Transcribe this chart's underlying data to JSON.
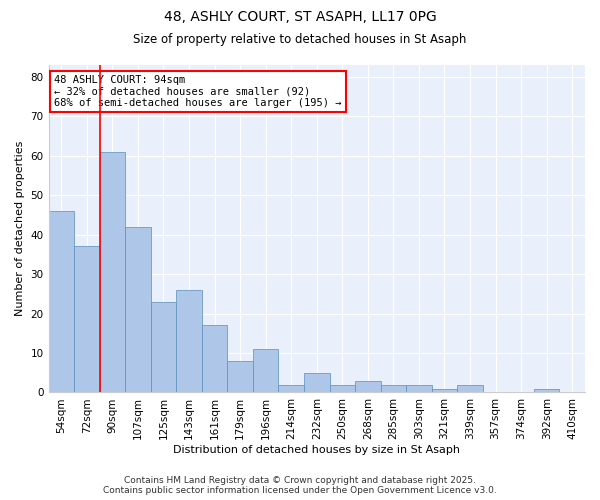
{
  "title": "48, ASHLY COURT, ST ASAPH, LL17 0PG",
  "subtitle": "Size of property relative to detached houses in St Asaph",
  "xlabel": "Distribution of detached houses by size in St Asaph",
  "ylabel": "Number of detached properties",
  "categories": [
    "54sqm",
    "72sqm",
    "90sqm",
    "107sqm",
    "125sqm",
    "143sqm",
    "161sqm",
    "179sqm",
    "196sqm",
    "214sqm",
    "232sqm",
    "250sqm",
    "268sqm",
    "285sqm",
    "303sqm",
    "321sqm",
    "339sqm",
    "357sqm",
    "374sqm",
    "392sqm",
    "410sqm"
  ],
  "values": [
    46,
    37,
    61,
    42,
    23,
    26,
    17,
    8,
    11,
    2,
    5,
    2,
    3,
    2,
    2,
    1,
    2,
    0,
    0,
    1,
    0
  ],
  "bar_color": "#aec6e8",
  "bar_edge_color": "#5a8fc0",
  "vline_x_index": 2,
  "vline_color": "red",
  "annotation_text": "48 ASHLY COURT: 94sqm\n← 32% of detached houses are smaller (92)\n68% of semi-detached houses are larger (195) →",
  "annotation_box_color": "white",
  "annotation_box_edge_color": "red",
  "ylim": [
    0,
    83
  ],
  "yticks": [
    0,
    10,
    20,
    30,
    40,
    50,
    60,
    70,
    80
  ],
  "footer_line1": "Contains HM Land Registry data © Crown copyright and database right 2025.",
  "footer_line2": "Contains public sector information licensed under the Open Government Licence v3.0.",
  "background_color": "#eaf0fb",
  "grid_color": "white",
  "fig_bg_color": "white",
  "ann_fontsize": 7.5,
  "title_fontsize": 10,
  "subtitle_fontsize": 8.5,
  "axis_label_fontsize": 8,
  "tick_fontsize": 7.5,
  "footer_fontsize": 6.5
}
